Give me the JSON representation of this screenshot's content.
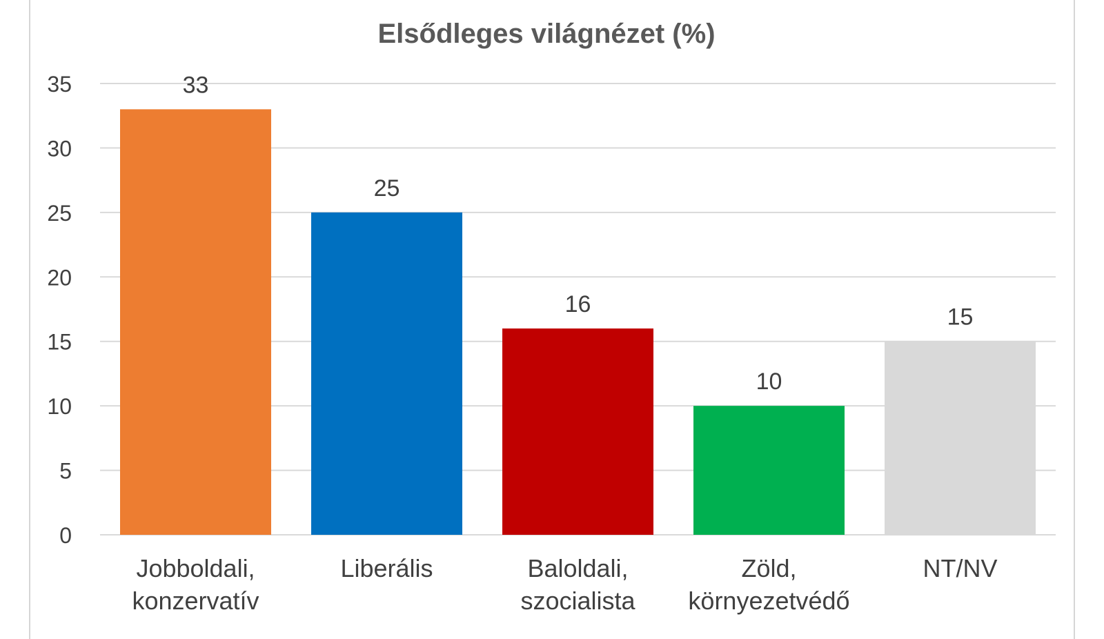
{
  "chart_data": {
    "type": "bar",
    "title": "Elsődleges világnézet (%)",
    "categories": [
      [
        "Jobboldali,",
        "konzervatív"
      ],
      [
        "Liberális"
      ],
      [
        "Baloldali,",
        "szocialista"
      ],
      [
        "Zöld,",
        "környezetvédő"
      ],
      [
        "NT/NV"
      ]
    ],
    "values": [
      33,
      25,
      16,
      10,
      15
    ],
    "data_labels": [
      "33",
      "25",
      "16",
      "10",
      "15"
    ],
    "colors": [
      "#ED7D31",
      "#0070C0",
      "#C00000",
      "#00B050",
      "#D9D9D9"
    ],
    "ylim": [
      0,
      35
    ],
    "yticks": [
      0,
      5,
      10,
      15,
      20,
      25,
      30,
      35
    ],
    "xlabel": "",
    "ylabel": "",
    "grid": true,
    "legend": "none"
  }
}
